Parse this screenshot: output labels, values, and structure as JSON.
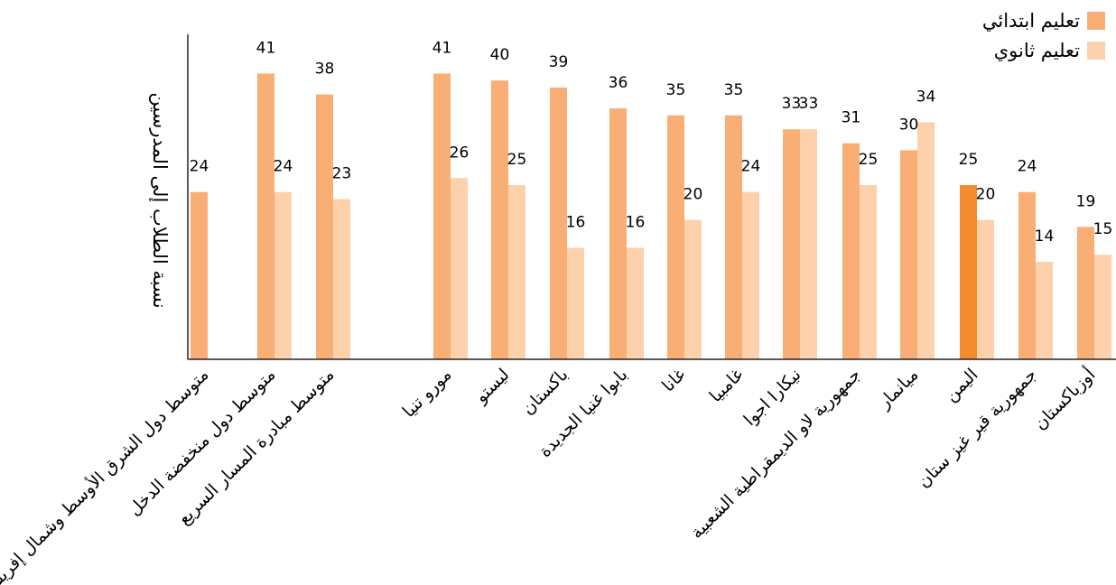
{
  "chart_data": {
    "type": "bar",
    "title": "",
    "xlabel": "",
    "ylabel": "نسبة الطلاب إلى المدرسين",
    "ylim": [
      0,
      50
    ],
    "grid": false,
    "legend_position": "top-right",
    "categories": [
      "متوسط دول الشرق الأوسط وشمال إفريقيا",
      "متوسط دول منخفضة الدخل",
      "متوسط مبادرة المسار السريع",
      "مورو تنيا",
      "ليستو",
      "باكستان",
      "بابوا غنيا الجديدة",
      "غانا",
      "غامبيا",
      "نيكارا اجوا",
      "جمهورية لاو الديمقراطية الشعبية",
      "ميانمار",
      "اليمن",
      "جمهورية قير غيز ستان",
      "أوزباكستان"
    ],
    "series": [
      {
        "name": "تعليم ابتدائي",
        "color": "#F8AE75",
        "values": [
          24,
          41,
          38,
          41,
          40,
          39,
          36,
          35,
          35,
          33,
          31,
          30,
          25,
          24,
          19
        ]
      },
      {
        "name": "تعليم ثانوي",
        "color": "#FDD1AB",
        "values": [
          null,
          24,
          23,
          26,
          25,
          16,
          16,
          20,
          24,
          33,
          25,
          34,
          20,
          14,
          15
        ]
      }
    ],
    "highlight": {
      "category": "اليمن",
      "series": "تعليم ابتدائي",
      "color": "#F38B30"
    },
    "axis_color": "#222222",
    "label_color": "#000000"
  }
}
